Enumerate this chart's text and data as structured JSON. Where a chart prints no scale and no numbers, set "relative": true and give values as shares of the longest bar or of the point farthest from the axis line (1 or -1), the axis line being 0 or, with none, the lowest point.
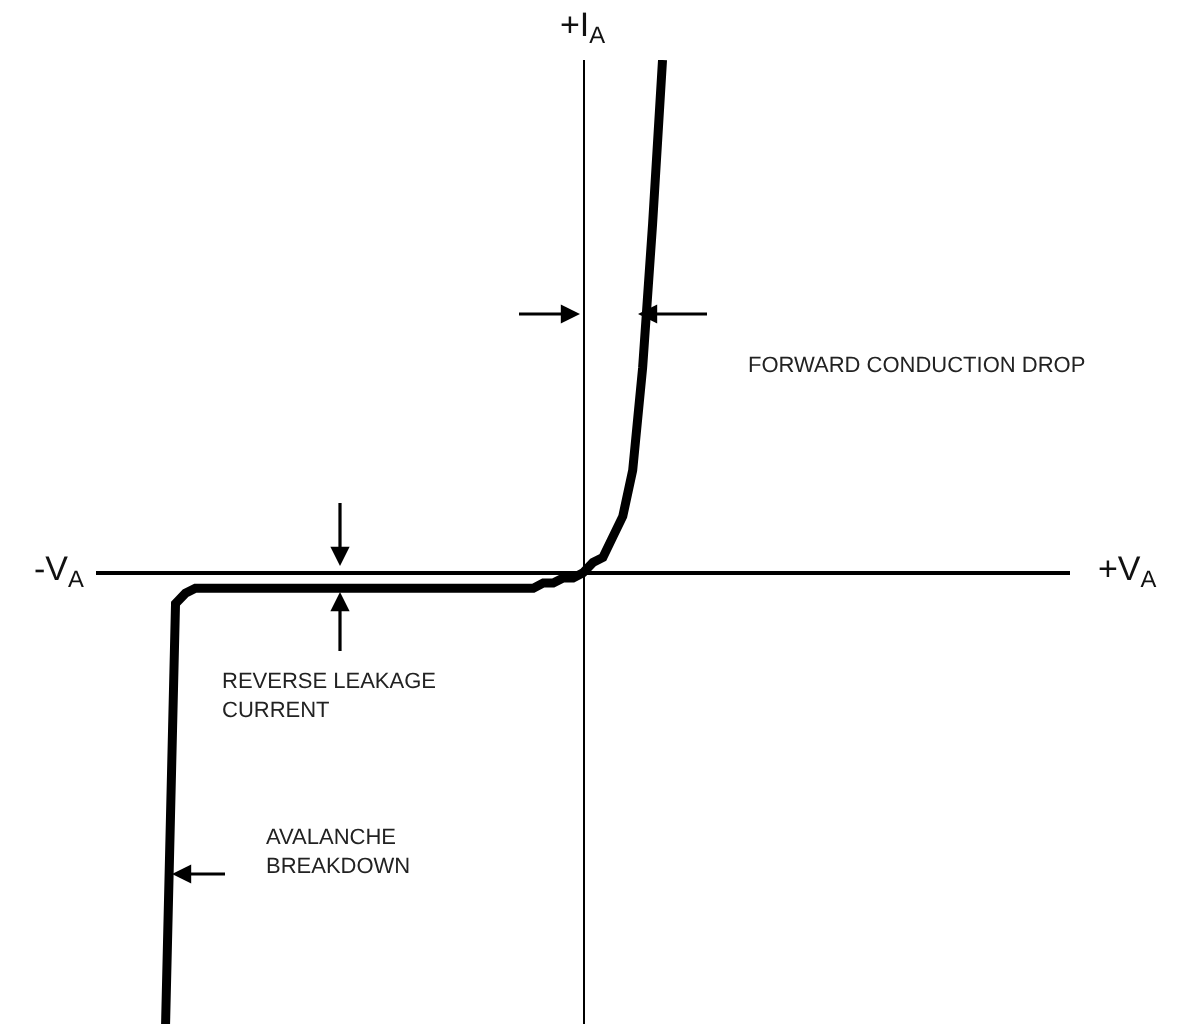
{
  "chart_data": {
    "type": "line",
    "relative": true,
    "color": "#000000",
    "line_style": "solid",
    "xlabel": "+V$_{A}$",
    "ylabel": "+I$_{A}$",
    "annotations": [
      "-V$_{A}$",
      "FORWARD CONDUCTION DROP",
      "REVERSE LEAKAGE\nCURRENT",
      "AVALANCHE\nBREAKDOWN"
    ],
    "categories": [
      null,
      null,
      null,
      null,
      null,
      null,
      null,
      null,
      null,
      null,
      null,
      null,
      null,
      null,
      null,
      null,
      null,
      null,
      null,
      null,
      null,
      null,
      null,
      null,
      null,
      null,
      null,
      null,
      null,
      null,
      null,
      null,
      null,
      null,
      null,
      null,
      null,
      null,
      null,
      null,
      null,
      null,
      null,
      null,
      null,
      null,
      null,
      null,
      null,
      null,
      null,
      null,
      null,
      null,
      null,
      null,
      null,
      null,
      null,
      null,
      null,
      null,
      null,
      null,
      null,
      null,
      null,
      null,
      null,
      null,
      null,
      null,
      null,
      null,
      null,
      null,
      null,
      null,
      null,
      null,
      null,
      null,
      null,
      null,
      null,
      null,
      null,
      null,
      null,
      null,
      null,
      null,
      null,
      null,
      null,
      null,
      null,
      null,
      null
    ],
    "values": [
      null,
      null,
      null,
      null,
      null,
      null,
      null,
      -0.88,
      -0.06,
      -0.04,
      -0.03,
      -0.03,
      -0.03,
      -0.03,
      -0.03,
      -0.03,
      -0.03,
      -0.03,
      -0.03,
      -0.03,
      -0.03,
      -0.03,
      -0.03,
      -0.03,
      -0.03,
      -0.03,
      -0.03,
      -0.03,
      -0.03,
      -0.03,
      -0.03,
      -0.03,
      -0.03,
      -0.03,
      -0.03,
      -0.03,
      -0.03,
      -0.03,
      -0.03,
      -0.03,
      -0.03,
      -0.03,
      -0.03,
      -0.03,
      -0.03,
      -0.02,
      -0.02,
      -0.01,
      -0.01,
      0,
      0.02,
      0.03,
      0.07,
      0.11,
      0.2,
      0.4,
      0.68,
      1,
      null,
      null,
      null,
      null,
      null,
      null,
      null,
      null,
      null,
      null,
      null,
      null,
      null,
      null,
      null,
      null,
      null,
      null,
      null,
      null,
      null,
      null,
      null,
      null,
      null,
      null,
      null,
      null,
      null,
      null,
      null,
      null,
      null,
      null,
      null,
      null,
      null,
      null,
      null,
      null,
      null
    ]
  }
}
